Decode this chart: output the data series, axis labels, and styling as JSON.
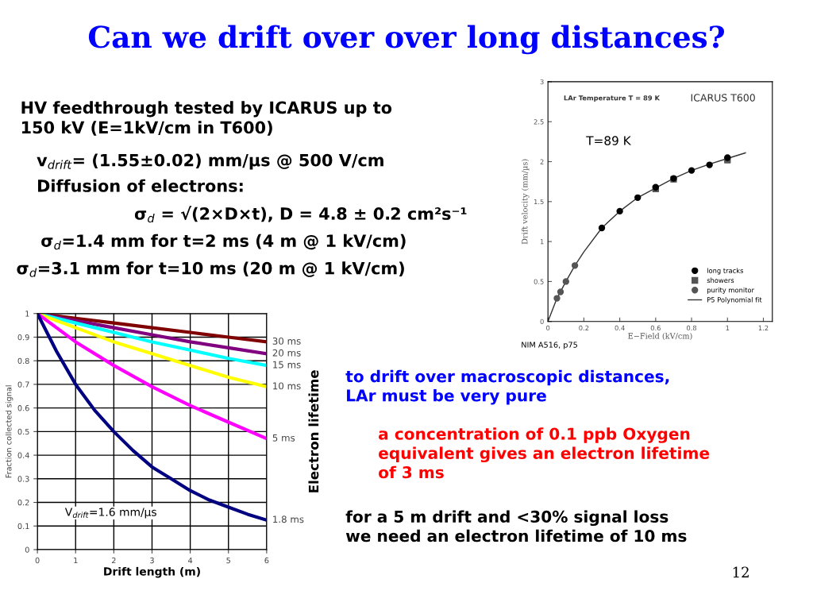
{
  "chart_data": [
    {
      "type": "other",
      "title": "Can we drift over over long distances?",
      "annotations": [
        "HV feedthrough tested by ICARUS up to\n150 kV (E=1kV/cm in T600)",
        "v$_{drift}$= (1.55±0.02) mm/µs @ 500 V/cm",
        "Diffusion of electrons:",
        "σ$_{d}$ = √(2×D×t), D = 4.8 ± 0.2 cm²s⁻¹",
        "σ$_{d}$=1.4 mm for t=2 ms (4 m @ 1 kV/cm)",
        "σ$_{d}$=3.1 mm for t=10 ms (20 m @ 1 kV/cm)",
        "to drift over macroscopic distances,\nLAr must be very pure",
        "a concentration of 0.1 ppb Oxygen\nequivalent gives an electron lifetime\nof 3 ms",
        "for a 5 m drift and <30% signal loss\nwe need an electron lifetime of 10 ms",
        "12"
      ],
      "colors": [
        "#000000",
        "#000000",
        "#000000",
        "#000000",
        "#000000",
        "#000000",
        "#0000ff",
        "#ff0000",
        "#000000",
        "#000000"
      ]
    },
    {
      "type": "line",
      "xlabel": "Drift length (m)",
      "ylabel": "Fraction collected signal",
      "legend_title": "Electron lifetime",
      "x": [
        0,
        1,
        2,
        3,
        4,
        5,
        6
      ],
      "xlim": [
        0,
        6
      ],
      "ylim": [
        0,
        1
      ],
      "xticks": [
        0,
        1,
        2,
        3,
        4,
        5,
        6
      ],
      "yticks": [
        0,
        0.1,
        0.2,
        0.3,
        0.4,
        0.5,
        0.6,
        0.7,
        0.8,
        0.9,
        1
      ],
      "grid": true,
      "marker": "none",
      "line_style": "solid",
      "annotations": [
        "V$_{drift}$=1.6 mm/µs"
      ],
      "series": [
        {
          "name": "30 ms",
          "color": "#800000",
          "values": [
            1,
            0.98,
            0.96,
            0.94,
            0.92,
            0.9,
            0.88
          ]
        },
        {
          "name": "20 ms",
          "color": "#800080",
          "values": [
            1,
            0.97,
            0.94,
            0.91,
            0.88,
            0.855,
            0.83
          ]
        },
        {
          "name": "15 ms",
          "color": "#00ffff",
          "values": [
            1,
            0.96,
            0.92,
            0.88,
            0.845,
            0.81,
            0.78
          ]
        },
        {
          "name": "10 ms",
          "color": "#ffff00",
          "values": [
            1,
            0.94,
            0.88,
            0.83,
            0.78,
            0.73,
            0.69
          ]
        },
        {
          "name": "5 ms",
          "color": "#ff00ff",
          "values": [
            1,
            0.88,
            0.78,
            0.69,
            0.61,
            0.54,
            0.47
          ]
        },
        {
          "name": "1.8 ms",
          "color": "#000080",
          "x": [
            0,
            0.5,
            1,
            1.5,
            2,
            2.5,
            3,
            3.5,
            4,
            4.5,
            5,
            5.5,
            6
          ],
          "values": [
            1,
            0.84,
            0.7,
            0.59,
            0.5,
            0.42,
            0.35,
            0.3,
            0.25,
            0.21,
            0.18,
            0.15,
            0.125
          ]
        }
      ]
    },
    {
      "type": "scatter",
      "xlabel": "E−Field (kV/cm)",
      "ylabel": "Drift velocity (mm/µs)",
      "xlim": [
        0,
        1.25
      ],
      "ylim": [
        0,
        3
      ],
      "xticks": [
        0,
        0.2,
        0.4,
        0.6,
        0.8,
        1,
        1.2
      ],
      "yticks": [
        0,
        0.5,
        1,
        1.5,
        2,
        2.5,
        3
      ],
      "grid": false,
      "legend": "bottom right",
      "annotations": [
        "LAr Temperature T = 89 K",
        "ICARUS T600",
        "T=89 K",
        "NIM A516, p75"
      ],
      "series": [
        {
          "name": "long tracks",
          "color": "#000000",
          "marker": "circle",
          "x": [
            0.3,
            0.4,
            0.5,
            0.6,
            0.7,
            0.8,
            0.9,
            1.0
          ],
          "values": [
            1.17,
            1.38,
            1.55,
            1.68,
            1.79,
            1.89,
            1.96,
            2.05
          ]
        },
        {
          "name": "showers",
          "color": "#555555",
          "marker": "square",
          "x": [
            0.6,
            0.7,
            1.0
          ],
          "values": [
            1.66,
            1.78,
            2.02
          ]
        },
        {
          "name": "purity monitor",
          "color": "#555555",
          "marker": "circle",
          "x": [
            0.05,
            0.07,
            0.1,
            0.15
          ],
          "values": [
            0.29,
            0.37,
            0.5,
            0.7
          ]
        },
        {
          "name": "P5 Polynomial fit",
          "type": "line",
          "color": "#333333",
          "marker": "none",
          "x": [
            0,
            0.05,
            0.1,
            0.15,
            0.2,
            0.3,
            0.4,
            0.5,
            0.6,
            0.7,
            0.8,
            0.9,
            1.0,
            1.1
          ],
          "values": [
            0,
            0.29,
            0.5,
            0.7,
            0.87,
            1.17,
            1.38,
            1.55,
            1.67,
            1.79,
            1.89,
            1.97,
            2.04,
            2.11
          ]
        }
      ]
    }
  ]
}
